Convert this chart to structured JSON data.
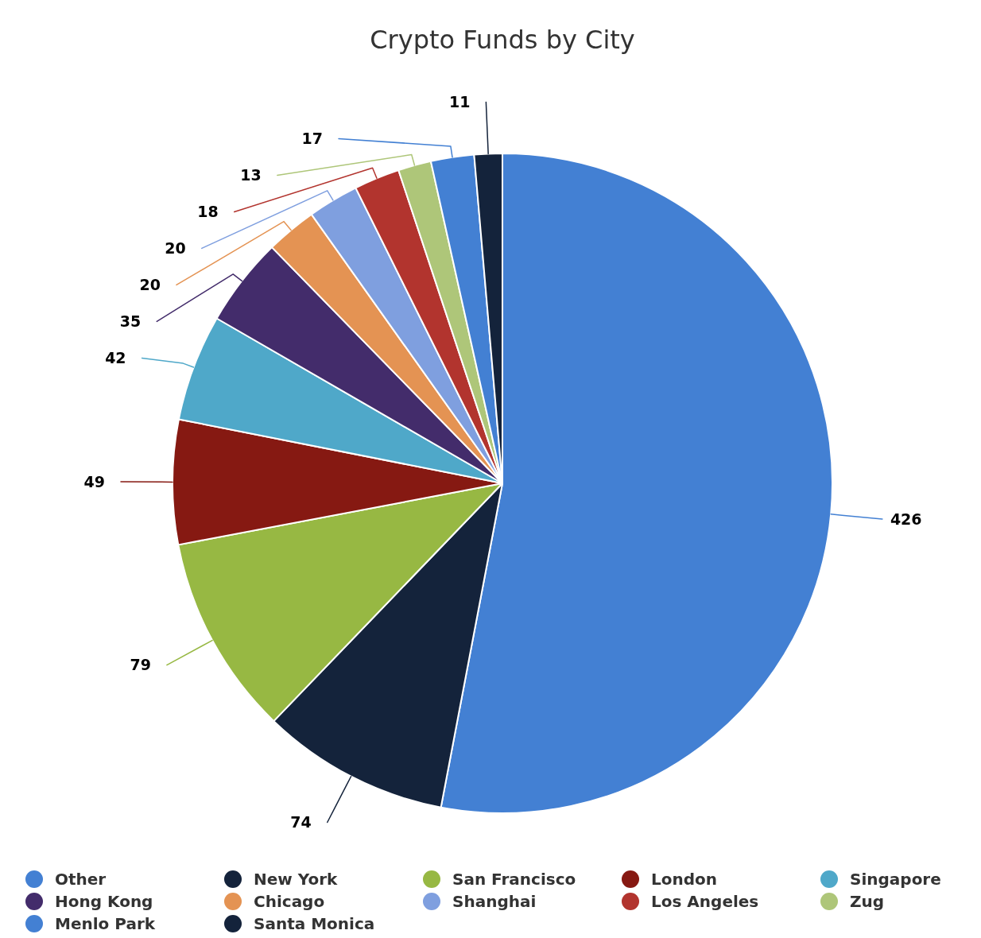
{
  "chart_data": {
    "type": "pie",
    "title": "Crypto Funds by City",
    "categories": [
      "Other",
      "New York",
      "San Francisco",
      "London",
      "Singapore",
      "Hong Kong",
      "Chicago",
      "Shanghai",
      "Los Angeles",
      "Zug",
      "Menlo Park",
      "Santa Monica"
    ],
    "values": [
      426,
      74,
      79,
      49,
      42,
      35,
      20,
      20,
      18,
      13,
      17,
      11
    ],
    "colors": [
      "#4380d3",
      "#14233b",
      "#97b843",
      "#861912",
      "#4fa8c9",
      "#432c6b",
      "#e49353",
      "#7f9fdf",
      "#b2342e",
      "#aec679",
      "#4380d3",
      "#14233b"
    ],
    "data_labels": true,
    "legend": "bottom"
  }
}
